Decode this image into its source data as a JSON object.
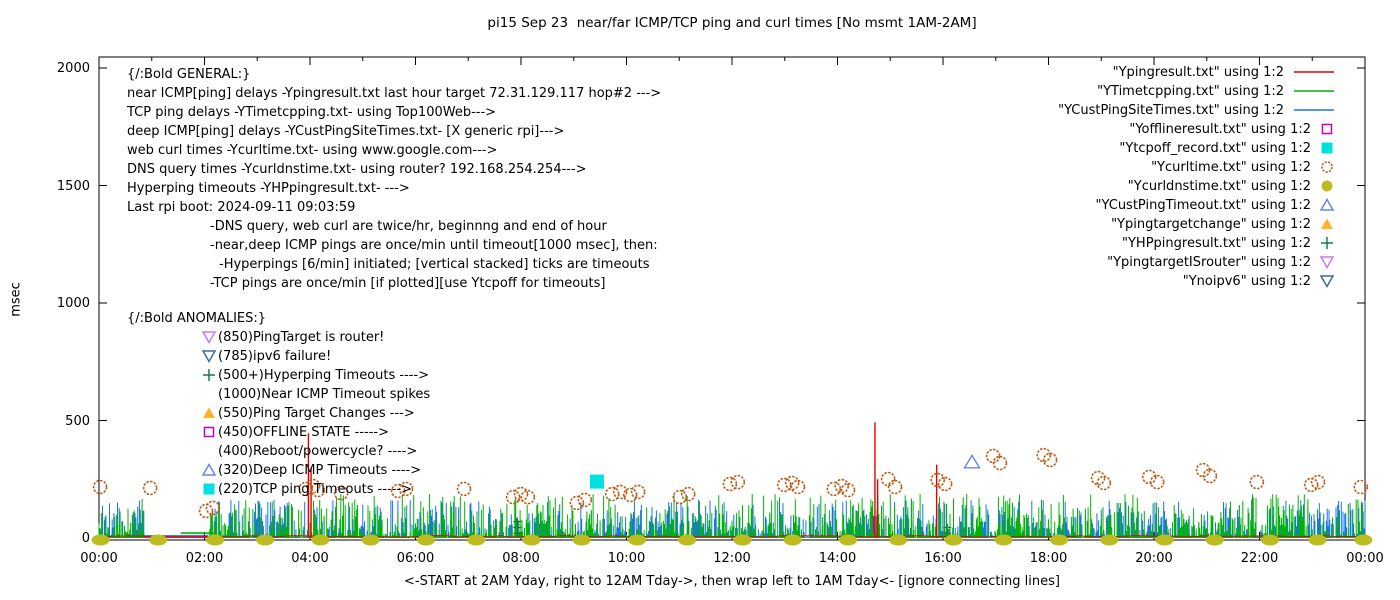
{
  "title": "pi15 Sep 23  near/far ICMP/TCP ping and curl times [No msmt 1AM-2AM]",
  "ylabel": "msec",
  "footer": "<-START at 2AM Yday, right to 12AM Tday->, then wrap left to 1AM Tday<- [ignore connecting lines]",
  "general": {
    "heading": "{/:Bold GENERAL:}",
    "lines": [
      {
        "text": "near ICMP[ping] delays -Ypingresult.txt last hour target 72.31.129.117 hop#2 --->",
        "indent": 0
      },
      {
        "text": "TCP ping delays -YTimetcpping.txt- using Top100Web--->",
        "indent": 0
      },
      {
        "text": "deep ICMP[ping] delays -YCustPingSiteTimes.txt- [X generic rpi]--->",
        "indent": 0
      },
      {
        "text": "web curl times -Ycurltime.txt- using www.google.com--->",
        "indent": 0
      },
      {
        "text": "DNS query times -Ycurldnstime.txt- using router? 192.168.254.254--->",
        "indent": 0
      },
      {
        "text": "Hyperping timeouts -YHPpingresult.txt- --->",
        "indent": 0
      },
      {
        "text": "Last rpi boot: 2024-09-11 09:03:59",
        "indent": 0
      },
      {
        "text": "-DNS query, web curl are twice/hr, beginnng and end of hour",
        "indent": 83
      },
      {
        "text": "-near,deep ICMP pings are once/min until timeout[1000 msec], then:",
        "indent": 83
      },
      {
        "text": "-Hyperpings [6/min] initiated; [vertical stacked] ticks are timeouts",
        "indent": 92
      },
      {
        "text": "-TCP pings are once/min [if plotted][use Ytcpoff for timeouts]",
        "indent": 83
      }
    ]
  },
  "anomalies": {
    "heading": "{/:Bold ANOMALIES:}",
    "items": [
      {
        "marker": "triangle-down-open",
        "color": "#c878f8",
        "text": "(850)PingTarget is router!"
      },
      {
        "marker": "triangle-down-open",
        "color": "#3d6d99",
        "text": "(785)ipv6 failure!"
      },
      {
        "marker": "plus",
        "color": "#1a7a46",
        "text": "(500+)Hyperping Timeouts ---->"
      },
      {
        "marker": "none",
        "color": "",
        "text": "(1000)Near ICMP Timeout spikes"
      },
      {
        "marker": "triangle-up-filled",
        "color": "#ffb325",
        "text": "(550)Ping Target Changes --->"
      },
      {
        "marker": "square-open",
        "color": "#bf00bf",
        "text": "(450)OFFLINE STATE ----->"
      },
      {
        "marker": "none",
        "color": "",
        "text": "(400)Reboot/powercycle? ---->"
      },
      {
        "marker": "triangle-up-open",
        "color": "#6688e8",
        "text": "(320)Deep ICMP Timeouts ---->"
      },
      {
        "marker": "square-filled",
        "color": "#00e0e0",
        "text": "(220)TCP ping Timeouts ----->"
      }
    ]
  },
  "legend": {
    "items": [
      {
        "label": "\"Ypingresult.txt\" using 1:2",
        "marker": "line",
        "color": "#e60000"
      },
      {
        "label": "\"YTimetcpping.txt\" using 1:2",
        "marker": "line",
        "color": "#00b400"
      },
      {
        "label": "\"YCustPingSiteTimes.txt\" using 1:2",
        "marker": "line",
        "color": "#1874e8"
      },
      {
        "label": "\"Yofflineresult.txt\" using 1:2",
        "marker": "square-open",
        "color": "#bf00bf"
      },
      {
        "label": "\"Ytcpoff_record.txt\" using 1:2",
        "marker": "square-filled",
        "color": "#00e0e0"
      },
      {
        "label": "\"Ycurltime.txt\" using 1:2",
        "marker": "circle-open",
        "color": "#c05a14"
      },
      {
        "label": "\"Ycurldnstime.txt\" using 1:2",
        "marker": "circle-filled",
        "color": "#bcbc20"
      },
      {
        "label": "\"YCustPingTimeout.txt\" using 1:2",
        "marker": "triangle-up-open",
        "color": "#6688e8"
      },
      {
        "label": "\"Ypingtargetchange\" using 1:2",
        "marker": "triangle-up-filled",
        "color": "#ffb325"
      },
      {
        "label": "\"YHPpingresult.txt\" using 1:2",
        "marker": "plus",
        "color": "#1a7a46"
      },
      {
        "label": "\"YpingtargetISrouter\" using 1:2",
        "marker": "triangle-down-open",
        "color": "#c878f8"
      },
      {
        "label": "\"Ynoipv6\" using 1:2",
        "marker": "triangle-down-open",
        "color": "#3d6d99"
      }
    ]
  },
  "chart_data": {
    "type": "line",
    "title": "pi15 Sep 23  near/far ICMP/TCP ping and curl times [No msmt 1AM-2AM]",
    "xlabel": "<-START at 2AM Yday, right to 12AM Tday->, then wrap left to 1AM Tday<- [ignore connecting lines]",
    "ylabel": "msec",
    "ylim": [
      0,
      2000
    ],
    "x_range_hours": [
      0,
      24
    ],
    "grid": false,
    "legend_position": "top-right",
    "x_ticks": [
      "00:00",
      "02:00",
      "04:00",
      "06:00",
      "08:00",
      "10:00",
      "12:00",
      "14:00",
      "16:00",
      "18:00",
      "20:00",
      "22:00",
      "00:00"
    ],
    "y_ticks": [
      0,
      500,
      1000,
      1500,
      2000
    ],
    "series": [
      {
        "name": "Ypingresult.txt",
        "role": "near ICMP ping, red baseline ~4 msec with timeout spikes"
      },
      {
        "name": "YTimetcpping.txt",
        "role": "TCP ping once/min, green noise band 5-185 msec"
      },
      {
        "name": "YCustPingSiteTimes.txt",
        "role": "deep ICMP ping once/min, blue noise band 5-160 msec"
      },
      {
        "name": "Yofflineresult.txt",
        "role": "offline state ticks (magenta)"
      },
      {
        "name": "Ytcpoff_record.txt",
        "role": "TCP ping timeouts (cyan squares)"
      },
      {
        "name": "Ycurltime.txt",
        "role": "web curl times (orange open circles)"
      },
      {
        "name": "Ycurldnstime.txt",
        "role": "DNS query times (olive dots on axis)"
      },
      {
        "name": "YCustPingTimeout.txt",
        "role": "deep ICMP timeouts (blue open triangles)"
      },
      {
        "name": "Ypingtargetchange",
        "role": "ping target changes (orange triangles)"
      },
      {
        "name": "YHPpingresult.txt",
        "role": "hyperping timeouts (green plus ticks)"
      },
      {
        "name": "YpingtargetISrouter",
        "role": "ping target is router (violet down triangle)"
      },
      {
        "name": "Ynoipv6",
        "role": "ipv6 failure (steel down triangle)"
      }
    ],
    "curl_circles": [
      [
        0.02,
        217
      ],
      [
        0.97,
        213
      ],
      [
        2.03,
        115
      ],
      [
        2.16,
        128
      ],
      [
        3.92,
        209
      ],
      [
        4.06,
        221
      ],
      [
        4.15,
        204
      ],
      [
        4.59,
        191
      ],
      [
        5.67,
        200
      ],
      [
        5.82,
        209
      ],
      [
        6.92,
        209
      ],
      [
        7.85,
        174
      ],
      [
        8.0,
        187
      ],
      [
        8.13,
        174
      ],
      [
        9.06,
        149
      ],
      [
        9.21,
        162
      ],
      [
        9.73,
        187
      ],
      [
        9.88,
        196
      ],
      [
        10.07,
        183
      ],
      [
        10.22,
        196
      ],
      [
        11.01,
        174
      ],
      [
        11.17,
        187
      ],
      [
        11.96,
        230
      ],
      [
        12.11,
        238
      ],
      [
        12.99,
        226
      ],
      [
        13.14,
        234
      ],
      [
        13.25,
        217
      ],
      [
        13.93,
        209
      ],
      [
        14.08,
        221
      ],
      [
        14.2,
        204
      ],
      [
        14.96,
        251
      ],
      [
        15.09,
        217
      ],
      [
        15.9,
        247
      ],
      [
        16.04,
        230
      ],
      [
        16.95,
        349
      ],
      [
        17.08,
        319
      ],
      [
        17.91,
        353
      ],
      [
        18.03,
        332
      ],
      [
        18.94,
        255
      ],
      [
        19.05,
        234
      ],
      [
        19.91,
        260
      ],
      [
        20.06,
        238
      ],
      [
        20.93,
        289
      ],
      [
        21.06,
        264
      ],
      [
        21.95,
        238
      ],
      [
        22.98,
        226
      ],
      [
        23.11,
        238
      ],
      [
        23.92,
        217
      ]
    ],
    "dns_dot_hours": [
      0.03,
      1.12,
      2.2,
      3.15,
      4.2,
      5.15,
      6.2,
      7.15,
      8.2,
      9.15,
      10.2,
      11.15,
      12.2,
      13.15,
      14.2,
      15.15,
      16.2,
      17.15,
      18.2,
      19.15,
      20.2,
      21.15,
      22.2,
      23.1,
      23.97
    ],
    "red_spikes": [
      [
        3.97,
        445
      ],
      [
        4.02,
        300
      ],
      [
        14.71,
        492
      ],
      [
        14.76,
        250
      ],
      [
        15.88,
        312
      ]
    ],
    "tcpoff_square": [
      9.44,
      240
    ],
    "deep_timeout_triangle": [
      16.55,
      322
    ],
    "offline_tick": {
      "h": 14.69,
      "m0": 20,
      "m1": 95
    },
    "hp_stacks": [
      {
        "h": 7.93,
        "values": [
          20,
          45,
          70
        ]
      },
      {
        "h": 16.08,
        "values": [
          20,
          45
        ]
      }
    ],
    "gap": {
      "start": 0.85,
      "end": 2.1,
      "lines": [
        {
          "color": "#00b400",
          "from": 1.55,
          "to": 2.17,
          "level": 21
        },
        {
          "color": "#1874e8",
          "from": 0.85,
          "to": 2.07,
          "level": 9
        },
        {
          "color": "#e60000",
          "from": 0.85,
          "to": 2.07,
          "level": 4
        }
      ]
    },
    "band": {
      "seed": 1337,
      "green_max": 185,
      "blue_max": 160,
      "red_base": 4
    }
  },
  "colors": {
    "red": "#e60000",
    "green": "#00b400",
    "blue": "#1874e8",
    "magenta": "#bf00bf",
    "cyan": "#00e0e0",
    "orange_circle": "#c05a14",
    "olive": "#bcbc20",
    "lt_blue": "#6688e8",
    "orange_triangle": "#ffb325",
    "dark_green": "#1a7a46",
    "violet": "#c878f8",
    "steel": "#3d6d99",
    "axis": "#000000"
  }
}
